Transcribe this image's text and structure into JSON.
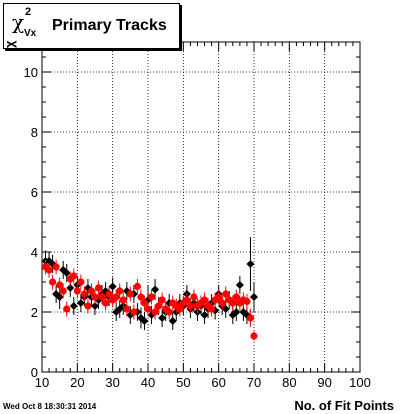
{
  "window": {
    "timestamp": "Wed Oct  8 18:30:31 2014"
  },
  "chart_data": {
    "type": "scatter",
    "title": "Primary Tracks",
    "title_symbol": {
      "base": "χ",
      "superscript": "2",
      "subscript": "Vx"
    },
    "xlabel": "No. of Fit Points",
    "ylabel": "χ",
    "xlim": [
      10,
      100
    ],
    "ylim": [
      0,
      11
    ],
    "xticks": [
      10,
      20,
      30,
      40,
      50,
      60,
      70,
      80,
      90,
      100
    ],
    "yticks": [
      0,
      2,
      4,
      6,
      8,
      10
    ],
    "grid": true,
    "series": [
      {
        "color": "#000000",
        "marker": "diamond",
        "points": [
          {
            "x": 11,
            "y": 3.7,
            "err": 0.35
          },
          {
            "x": 12,
            "y": 3.7,
            "err": 0.3
          },
          {
            "x": 13,
            "y": 3.6,
            "err": 0.3
          },
          {
            "x": 14,
            "y": 2.6,
            "err": 0.3
          },
          {
            "x": 15,
            "y": 2.5,
            "err": 0.4
          },
          {
            "x": 16,
            "y": 3.4,
            "err": 0.3
          },
          {
            "x": 17,
            "y": 3.3,
            "err": 0.3
          },
          {
            "x": 18,
            "y": 2.8,
            "err": 0.3
          },
          {
            "x": 19,
            "y": 2.2,
            "err": 0.3
          },
          {
            "x": 20,
            "y": 2.9,
            "err": 0.3
          },
          {
            "x": 21,
            "y": 2.3,
            "err": 0.3
          },
          {
            "x": 22,
            "y": 2.5,
            "err": 0.3
          },
          {
            "x": 23,
            "y": 2.8,
            "err": 0.3
          },
          {
            "x": 24,
            "y": 2.5,
            "err": 0.3
          },
          {
            "x": 25,
            "y": 2.2,
            "err": 0.3
          },
          {
            "x": 26,
            "y": 2.4,
            "err": 0.3
          },
          {
            "x": 27,
            "y": 2.6,
            "err": 0.3
          },
          {
            "x": 28,
            "y": 2.7,
            "err": 0.3
          },
          {
            "x": 29,
            "y": 2.5,
            "err": 0.3
          },
          {
            "x": 30,
            "y": 2.85,
            "err": 0.3
          },
          {
            "x": 31,
            "y": 2.0,
            "err": 0.3
          },
          {
            "x": 32,
            "y": 2.1,
            "err": 0.3
          },
          {
            "x": 33,
            "y": 2.2,
            "err": 0.3
          },
          {
            "x": 34,
            "y": 2.7,
            "err": 0.3
          },
          {
            "x": 35,
            "y": 1.9,
            "err": 0.3
          },
          {
            "x": 36,
            "y": 2.6,
            "err": 0.3
          },
          {
            "x": 37,
            "y": 2.0,
            "err": 0.3
          },
          {
            "x": 38,
            "y": 1.8,
            "err": 0.35
          },
          {
            "x": 39,
            "y": 1.7,
            "err": 0.3
          },
          {
            "x": 40,
            "y": 2.4,
            "err": 0.5
          },
          {
            "x": 41,
            "y": 1.9,
            "err": 0.3
          },
          {
            "x": 42,
            "y": 2.75,
            "err": 0.35
          },
          {
            "x": 43,
            "y": 2.2,
            "err": 0.3
          },
          {
            "x": 44,
            "y": 1.8,
            "err": 0.3
          },
          {
            "x": 45,
            "y": 2.0,
            "err": 0.3
          },
          {
            "x": 46,
            "y": 2.3,
            "err": 0.3
          },
          {
            "x": 47,
            "y": 1.7,
            "err": 0.3
          },
          {
            "x": 48,
            "y": 2.0,
            "err": 0.3
          },
          {
            "x": 49,
            "y": 2.3,
            "err": 0.3
          },
          {
            "x": 50,
            "y": 2.2,
            "err": 0.3
          },
          {
            "x": 51,
            "y": 2.6,
            "err": 0.3
          },
          {
            "x": 52,
            "y": 2.1,
            "err": 0.3
          },
          {
            "x": 53,
            "y": 2.3,
            "err": 0.3
          },
          {
            "x": 54,
            "y": 2.0,
            "err": 0.3
          },
          {
            "x": 55,
            "y": 2.2,
            "err": 0.3
          },
          {
            "x": 56,
            "y": 1.9,
            "err": 0.3
          },
          {
            "x": 57,
            "y": 2.1,
            "err": 0.3
          },
          {
            "x": 58,
            "y": 2.3,
            "err": 0.3
          },
          {
            "x": 59,
            "y": 2.05,
            "err": 0.3
          },
          {
            "x": 60,
            "y": 2.6,
            "err": 0.3
          },
          {
            "x": 61,
            "y": 2.2,
            "err": 0.3
          },
          {
            "x": 62,
            "y": 2.1,
            "err": 0.3
          },
          {
            "x": 63,
            "y": 2.4,
            "err": 0.3
          },
          {
            "x": 64,
            "y": 1.9,
            "err": 0.3
          },
          {
            "x": 65,
            "y": 2.0,
            "err": 0.3
          },
          {
            "x": 66,
            "y": 2.9,
            "err": 0.3
          },
          {
            "x": 67,
            "y": 2.0,
            "err": 0.3
          },
          {
            "x": 68,
            "y": 1.9,
            "err": 0.3
          },
          {
            "x": 69,
            "y": 3.6,
            "err": 0.9
          },
          {
            "x": 70,
            "y": 2.5,
            "err": 0.5
          }
        ]
      },
      {
        "color": "#ff0000",
        "marker": "circle",
        "points": [
          {
            "x": 11,
            "y": 3.5,
            "err": 0.25
          },
          {
            "x": 12,
            "y": 3.4,
            "err": 0.25
          },
          {
            "x": 13,
            "y": 3.0,
            "err": 0.25
          },
          {
            "x": 14,
            "y": 3.5,
            "err": 0.25
          },
          {
            "x": 15,
            "y": 2.9,
            "err": 0.25
          },
          {
            "x": 16,
            "y": 2.7,
            "err": 0.25
          },
          {
            "x": 17,
            "y": 2.1,
            "err": 0.25
          },
          {
            "x": 18,
            "y": 3.1,
            "err": 0.25
          },
          {
            "x": 19,
            "y": 3.2,
            "err": 0.25
          },
          {
            "x": 20,
            "y": 2.7,
            "err": 0.25
          },
          {
            "x": 21,
            "y": 3.0,
            "err": 0.25
          },
          {
            "x": 22,
            "y": 2.6,
            "err": 0.25
          },
          {
            "x": 23,
            "y": 2.2,
            "err": 0.25
          },
          {
            "x": 24,
            "y": 2.7,
            "err": 0.25
          },
          {
            "x": 25,
            "y": 2.5,
            "err": 0.25
          },
          {
            "x": 26,
            "y": 2.8,
            "err": 0.25
          },
          {
            "x": 27,
            "y": 2.5,
            "err": 0.25
          },
          {
            "x": 28,
            "y": 2.3,
            "err": 0.25
          },
          {
            "x": 29,
            "y": 2.6,
            "err": 0.25
          },
          {
            "x": 30,
            "y": 2.4,
            "err": 0.25
          },
          {
            "x": 31,
            "y": 2.5,
            "err": 0.25
          },
          {
            "x": 32,
            "y": 2.7,
            "err": 0.25
          },
          {
            "x": 33,
            "y": 2.4,
            "err": 0.25
          },
          {
            "x": 34,
            "y": 2.1,
            "err": 0.25
          },
          {
            "x": 35,
            "y": 2.6,
            "err": 0.25
          },
          {
            "x": 36,
            "y": 2.0,
            "err": 0.25
          },
          {
            "x": 37,
            "y": 2.85,
            "err": 0.25
          },
          {
            "x": 38,
            "y": 2.5,
            "err": 0.25
          },
          {
            "x": 39,
            "y": 2.3,
            "err": 0.25
          },
          {
            "x": 40,
            "y": 2.1,
            "err": 0.25
          },
          {
            "x": 41,
            "y": 2.5,
            "err": 0.25
          },
          {
            "x": 42,
            "y": 2.0,
            "err": 0.25
          },
          {
            "x": 43,
            "y": 2.2,
            "err": 0.25
          },
          {
            "x": 44,
            "y": 2.4,
            "err": 0.25
          },
          {
            "x": 45,
            "y": 2.1,
            "err": 0.25
          },
          {
            "x": 46,
            "y": 2.0,
            "err": 0.25
          },
          {
            "x": 47,
            "y": 2.3,
            "err": 0.25
          },
          {
            "x": 48,
            "y": 2.2,
            "err": 0.25
          },
          {
            "x": 49,
            "y": 2.1,
            "err": 0.25
          },
          {
            "x": 50,
            "y": 2.3,
            "err": 0.25
          },
          {
            "x": 51,
            "y": 2.4,
            "err": 0.25
          },
          {
            "x": 52,
            "y": 2.2,
            "err": 0.25
          },
          {
            "x": 53,
            "y": 2.5,
            "err": 0.25
          },
          {
            "x": 54,
            "y": 2.2,
            "err": 0.25
          },
          {
            "x": 55,
            "y": 2.3,
            "err": 0.25
          },
          {
            "x": 56,
            "y": 2.4,
            "err": 0.25
          },
          {
            "x": 57,
            "y": 2.2,
            "err": 0.25
          },
          {
            "x": 58,
            "y": 2.1,
            "err": 0.25
          },
          {
            "x": 59,
            "y": 2.4,
            "err": 0.25
          },
          {
            "x": 60,
            "y": 2.5,
            "err": 0.25
          },
          {
            "x": 61,
            "y": 2.3,
            "err": 0.25
          },
          {
            "x": 62,
            "y": 2.6,
            "err": 0.25
          },
          {
            "x": 63,
            "y": 2.4,
            "err": 0.25
          },
          {
            "x": 64,
            "y": 2.3,
            "err": 0.25
          },
          {
            "x": 65,
            "y": 2.5,
            "err": 0.25
          },
          {
            "x": 66,
            "y": 2.3,
            "err": 0.25
          },
          {
            "x": 67,
            "y": 2.4,
            "err": 0.25
          },
          {
            "x": 68,
            "y": 2.35,
            "err": 0.25
          },
          {
            "x": 69,
            "y": 1.8,
            "err": 0.3
          },
          {
            "x": 70,
            "y": 1.2,
            "err": 0.15
          }
        ]
      }
    ]
  }
}
